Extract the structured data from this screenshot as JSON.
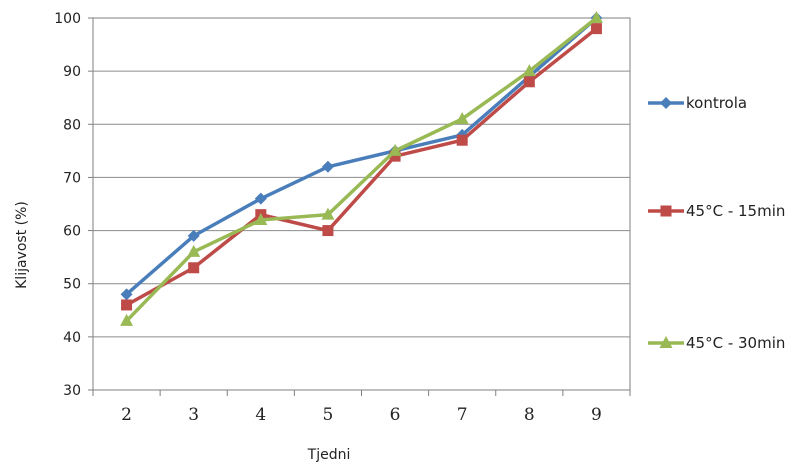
{
  "chart_data": {
    "type": "line",
    "title": "",
    "xlabel": "Tjedni",
    "ylabel": "Klijavost (%)",
    "x": [
      2,
      3,
      4,
      5,
      6,
      7,
      8,
      9
    ],
    "ylim": [
      30,
      100
    ],
    "yticks": [
      30,
      40,
      50,
      60,
      70,
      80,
      90,
      100
    ],
    "grid": true,
    "legend_position": "right",
    "series": [
      {
        "name": "kontrola",
        "color": "#4a7ebb",
        "marker": "diamond",
        "values": [
          48,
          59,
          66,
          72,
          75,
          78,
          89,
          100
        ]
      },
      {
        "name": "45°C - 15min",
        "color": "#be4b48",
        "marker": "square",
        "values": [
          46,
          53,
          63,
          60,
          74,
          77,
          88,
          98
        ]
      },
      {
        "name": "45°C - 30min",
        "color": "#98b954",
        "marker": "triangle",
        "values": [
          43,
          56,
          62,
          63,
          75,
          81,
          90,
          100
        ]
      }
    ]
  }
}
